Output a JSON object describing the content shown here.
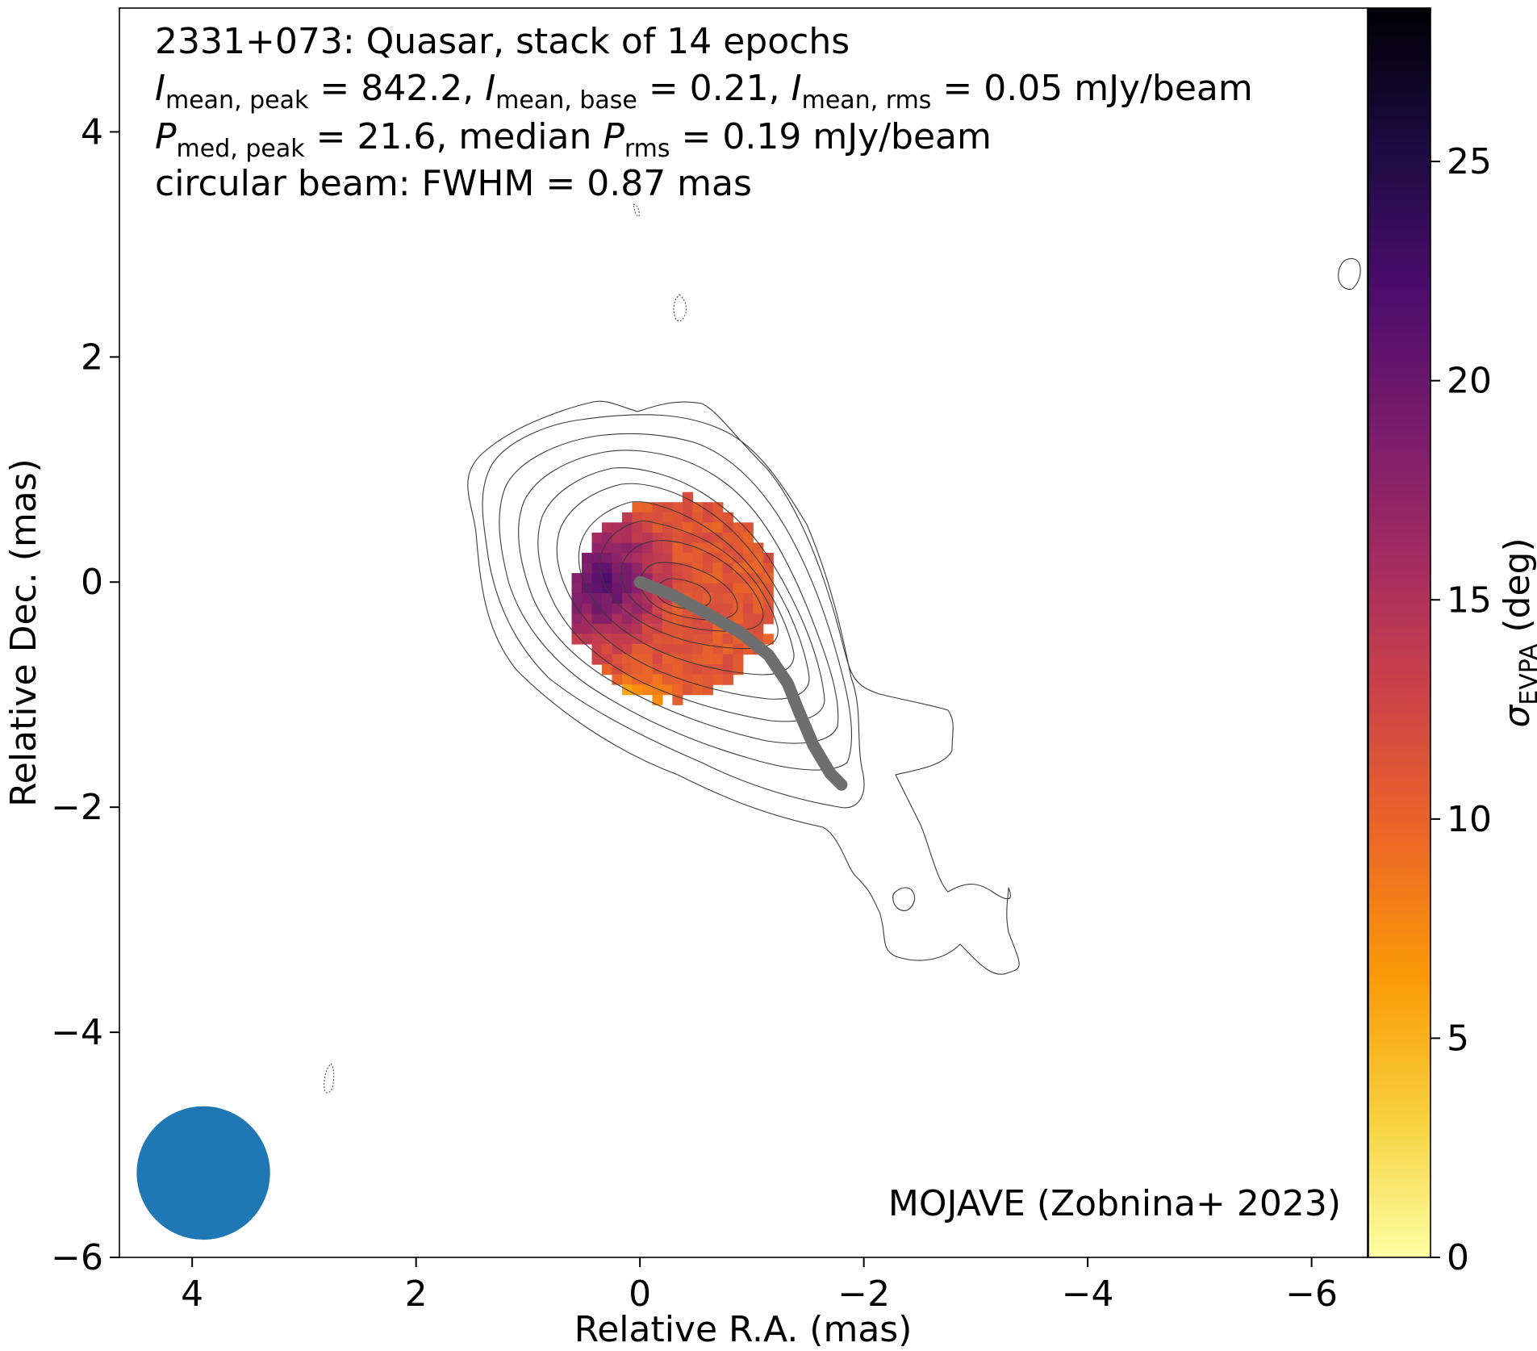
{
  "chart_data": {
    "type": "heatmap",
    "annotations": {
      "line1": "2331+073: Quasar, stack of 14 epochs",
      "line2": {
        "v1_prefix": "I",
        "v1_sub": "mean, peak",
        "v1_value": " = 842.2, ",
        "v2_prefix": "I",
        "v2_sub": "mean, base",
        "v2_value": " = 0.21, ",
        "v3_prefix": "I",
        "v3_sub": "mean, rms",
        "v3_value": " = 0.05 mJy/beam"
      },
      "line3": {
        "v1_prefix": "P",
        "v1_sub": "med, peak",
        "v1_value": " = 21.6, median ",
        "v2_prefix": "P",
        "v2_sub": "rms",
        "v2_value": " = 0.19 mJy/beam"
      },
      "line4": "circular beam: FWHM = 0.87 mas",
      "credit": "MOJAVE (Zobnina+ 2023)"
    },
    "xlabel": "Relative R.A. (mas)",
    "ylabel": "Relative Dec. (mas)",
    "xlim": [
      4.65,
      -6.5
    ],
    "ylim": [
      -6.0,
      5.1
    ],
    "xticks": [
      4,
      2,
      0,
      -2,
      -4,
      -6
    ],
    "xtick_labels": [
      "4",
      "2",
      "0",
      "−2",
      "−4",
      "−6"
    ],
    "yticks": [
      4,
      2,
      0,
      -2,
      -4,
      -6
    ],
    "ytick_labels": [
      "4",
      "2",
      "0",
      "−2",
      "−4",
      "−6"
    ],
    "colorbar": {
      "label_prefix": "σ",
      "label_sub": "EVPA",
      "label_suffix": " (deg)",
      "range": [
        0,
        28.5
      ],
      "ticks": [
        0,
        5,
        10,
        15,
        20,
        25
      ],
      "tick_labels": [
        "0",
        "5",
        "10",
        "15",
        "20",
        "25"
      ],
      "colormap": "inferno_r",
      "colors": [
        "#fcffa4",
        "#f7d13d",
        "#fb9b06",
        "#ed6925",
        "#cf4446",
        "#a52c60",
        "#781c6d",
        "#4a0c6b",
        "#1b0c41",
        "#000004"
      ]
    },
    "beam": {
      "center": [
        3.9,
        -5.25
      ],
      "fwhm": 0.87,
      "color": "#1f77b4"
    },
    "ridgeline": {
      "color": "#6e6e6e",
      "points": [
        [
          0.0,
          0.0
        ],
        [
          -0.3,
          -0.12
        ],
        [
          -0.6,
          -0.28
        ],
        [
          -0.9,
          -0.45
        ],
        [
          -1.15,
          -0.65
        ],
        [
          -1.32,
          -0.9
        ],
        [
          -1.42,
          -1.15
        ],
        [
          -1.55,
          -1.45
        ],
        [
          -1.7,
          -1.7
        ],
        [
          -1.8,
          -1.8
        ]
      ]
    },
    "pixel_map": {
      "cell_size_mas": 0.09,
      "center": [
        -0.25,
        -0.1
      ],
      "semi_axes": [
        0.93,
        0.88
      ],
      "rotation_deg": -30,
      "core_center": [
        0.4,
        0.05
      ],
      "core_value": 22,
      "edge_value": 11,
      "low_region_center": [
        0.1,
        -0.95
      ],
      "low_region_value": 5
    },
    "contours": {
      "base_level": 0.21,
      "levels_factor": 2,
      "n_levels": 11
    }
  }
}
